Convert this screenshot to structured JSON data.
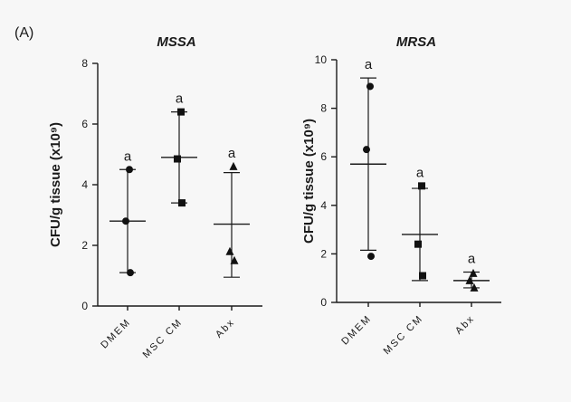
{
  "panel_label": "(A)",
  "chart_data": [
    {
      "type": "scatter",
      "title": "MSSA",
      "ylabel": "CFU/g tissue (x10⁹)",
      "xlabel": "",
      "ylim": [
        0,
        8
      ],
      "yticks": [
        0,
        2,
        4,
        6,
        8
      ],
      "categories": [
        "DMEM",
        "MSC CM",
        "Abx"
      ],
      "groups": [
        {
          "category": "DMEM",
          "marker": "circle",
          "values": [
            4.5,
            2.8,
            1.1
          ],
          "mean": 2.8,
          "sd_low": 1.1,
          "sd_high": 4.5,
          "annotation": "a"
        },
        {
          "category": "MSC CM",
          "marker": "square",
          "values": [
            6.4,
            4.85,
            3.4
          ],
          "mean": 4.9,
          "sd_low": 3.4,
          "sd_high": 6.4,
          "annotation": "a"
        },
        {
          "category": "Abx",
          "marker": "triangle",
          "values": [
            4.6,
            1.8,
            1.5
          ],
          "mean": 2.7,
          "sd_low": 0.95,
          "sd_high": 4.4,
          "annotation": "a"
        }
      ]
    },
    {
      "type": "scatter",
      "title": "MRSA",
      "ylabel": "CFU/g tissue (x10⁹)",
      "xlabel": "",
      "ylim": [
        0,
        10
      ],
      "yticks": [
        0,
        2,
        4,
        6,
        8,
        10
      ],
      "categories": [
        "DMEM",
        "MSC CM",
        "Abx"
      ],
      "groups": [
        {
          "category": "DMEM",
          "marker": "circle",
          "values": [
            8.9,
            6.3,
            1.9
          ],
          "mean": 5.7,
          "sd_low": 2.15,
          "sd_high": 9.25,
          "annotation": "a"
        },
        {
          "category": "MSC CM",
          "marker": "square",
          "values": [
            4.8,
            2.4,
            1.1
          ],
          "mean": 2.8,
          "sd_low": 0.9,
          "sd_high": 4.7,
          "annotation": "a"
        },
        {
          "category": "Abx",
          "marker": "triangle",
          "values": [
            1.2,
            0.9,
            0.6
          ],
          "mean": 0.9,
          "sd_low": 0.6,
          "sd_high": 1.25,
          "annotation": "a"
        }
      ]
    }
  ]
}
